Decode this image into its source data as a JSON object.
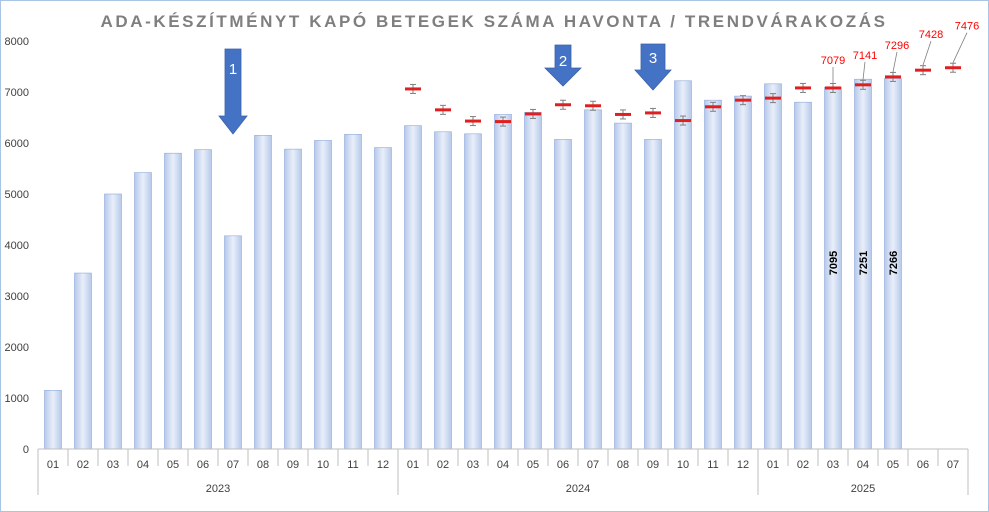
{
  "chart_data": {
    "type": "bar",
    "title": "ADA-KÉSZÍTMÉNYT KAPÓ BETEGEK SZÁMA HAVONTA / TRENDVÁRAKOZÁS",
    "ylim": [
      0,
      8000
    ],
    "yticks": [
      "0",
      "1000",
      "2000",
      "3000",
      "4000",
      "5000",
      "6000",
      "7000",
      "8000"
    ],
    "grid": false,
    "categories": [
      "01",
      "02",
      "03",
      "04",
      "05",
      "06",
      "07",
      "08",
      "09",
      "10",
      "11",
      "12",
      "01",
      "02",
      "03",
      "04",
      "05",
      "06",
      "07",
      "08",
      "09",
      "10",
      "11",
      "12",
      "01",
      "02",
      "03",
      "04",
      "05",
      "06",
      "07"
    ],
    "years": [
      {
        "label": "2023",
        "count": 12
      },
      {
        "label": "2024",
        "count": 12
      },
      {
        "label": "2025",
        "count": 7
      }
    ],
    "series": [
      {
        "type": "bar",
        "values": [
          1150,
          3450,
          5000,
          5420,
          5800,
          5870,
          4180,
          6150,
          5880,
          6050,
          6170,
          5910,
          6340,
          6220,
          6180,
          6560,
          6600,
          6070,
          6650,
          6390,
          6070,
          7220,
          6840,
          6920,
          7160,
          6800,
          7095,
          7251,
          7266,
          null,
          null
        ]
      },
      {
        "type": "trend-marker",
        "values": [
          null,
          null,
          null,
          null,
          null,
          null,
          null,
          null,
          null,
          null,
          null,
          null,
          7060,
          6650,
          6430,
          6420,
          6570,
          6750,
          6730,
          6560,
          6590,
          6440,
          6710,
          6840,
          6880,
          7080,
          7079,
          7141,
          7296,
          7428,
          7476
        ]
      }
    ],
    "point_labels": [
      {
        "index": 26,
        "text": "7079"
      },
      {
        "index": 27,
        "text": "7141"
      },
      {
        "index": 28,
        "text": "7296"
      },
      {
        "index": 29,
        "text": "7428"
      },
      {
        "index": 30,
        "text": "7476"
      }
    ],
    "bar_labels": [
      {
        "index": 26,
        "text": "7095"
      },
      {
        "index": 27,
        "text": "7251"
      },
      {
        "index": 28,
        "text": "7266"
      }
    ],
    "annotations": [
      {
        "label": "1",
        "index": 6,
        "kind": "arrow-down"
      },
      {
        "label": "2",
        "index": 17,
        "kind": "arrow-down"
      },
      {
        "label": "3",
        "index": 20,
        "kind": "arrow-down"
      }
    ],
    "colors": {
      "bar_top": "#e9effa",
      "bar_bottom": "#b6c9ea",
      "bar_edge": "#8eaadb",
      "marker": "#e02020",
      "arrow": "#4472c4",
      "label_red": "#ff0000"
    }
  }
}
